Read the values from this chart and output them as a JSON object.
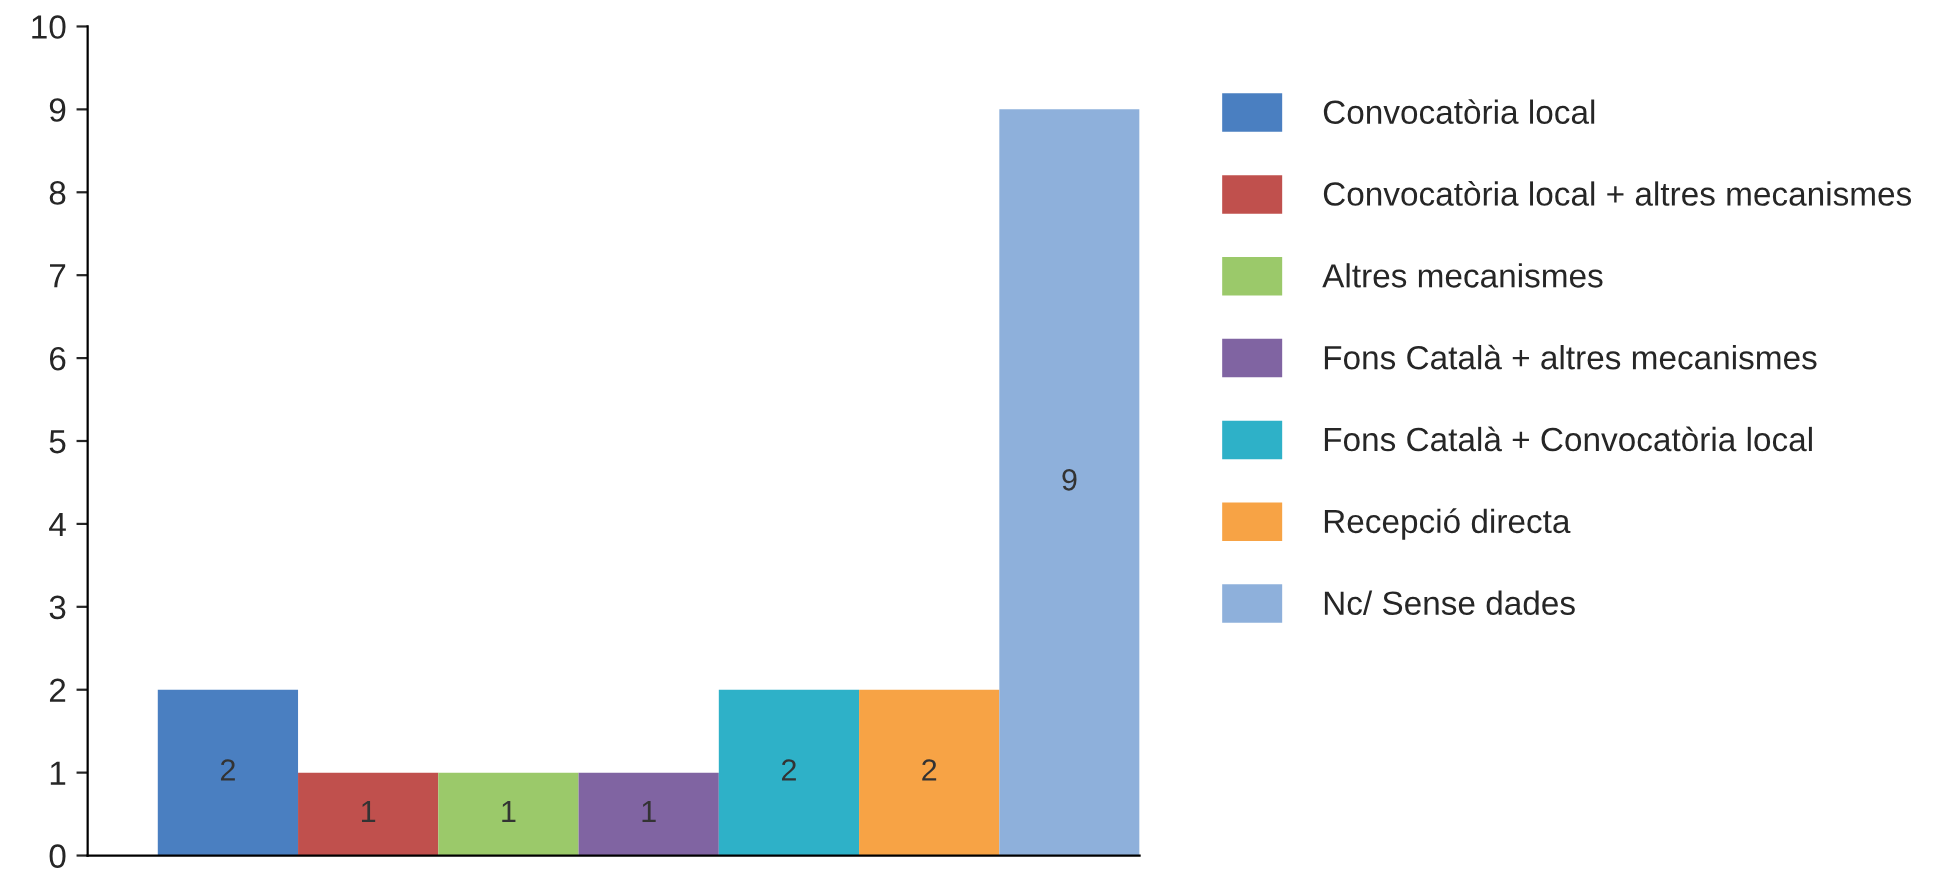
{
  "chart_data": {
    "type": "bar",
    "categories": [
      null,
      null,
      null,
      null,
      null,
      null,
      null
    ],
    "series": [
      {
        "name": "Convocatòria local",
        "color": "#4a7fc1",
        "values": [
          2,
          null,
          null,
          null,
          null,
          null,
          null
        ]
      },
      {
        "name": "Convocatòria local + altres mecanismes",
        "color": "#c0504d",
        "values": [
          null,
          1,
          null,
          null,
          null,
          null,
          null
        ]
      },
      {
        "name": "Altres mecanismes",
        "color": "#9bc96a",
        "values": [
          null,
          null,
          1,
          null,
          null,
          null,
          null
        ]
      },
      {
        "name": "Fons Català + altres mecanismes",
        "color": "#8064a2",
        "values": [
          null,
          null,
          null,
          1,
          null,
          null,
          null
        ]
      },
      {
        "name": "Fons Català + Convocatòria local",
        "color": "#2eb1c8",
        "values": [
          null,
          null,
          null,
          null,
          2,
          null,
          null
        ]
      },
      {
        "name": "Recepció directa",
        "color": "#f7a345",
        "values": [
          null,
          null,
          null,
          null,
          null,
          2,
          null
        ]
      },
      {
        "name": "Nc/ Sense dades",
        "color": "#8eb0db",
        "values": [
          null,
          null,
          null,
          null,
          null,
          null,
          9
        ]
      }
    ],
    "ylim": [
      0,
      10
    ],
    "yticks": [
      0,
      1,
      2,
      3,
      4,
      5,
      6,
      7,
      8,
      9,
      10
    ],
    "grid": false,
    "legend": "right",
    "data_labels": true,
    "tick_labels": "y"
  }
}
